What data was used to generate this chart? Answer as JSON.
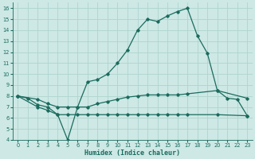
{
  "xlabel": "Humidex (Indice chaleur)",
  "bg_color": "#cde8e5",
  "line_color": "#1b6b5e",
  "grid_color": "#afd4cf",
  "xlim": [
    -0.5,
    23.5
  ],
  "ylim": [
    4,
    16.5
  ],
  "xticks": [
    0,
    1,
    2,
    3,
    4,
    5,
    6,
    7,
    8,
    9,
    10,
    11,
    12,
    13,
    14,
    15,
    16,
    17,
    18,
    19,
    20,
    21,
    22,
    23
  ],
  "yticks": [
    4,
    5,
    6,
    7,
    8,
    9,
    10,
    11,
    12,
    13,
    14,
    15,
    16
  ],
  "line1_x": [
    0,
    1,
    2,
    3,
    4,
    5,
    6,
    7,
    8,
    9,
    10,
    11,
    12,
    13,
    14,
    15,
    16,
    17,
    18,
    19,
    20,
    21,
    22,
    23
  ],
  "line1_y": [
    8.0,
    7.8,
    7.2,
    7.0,
    6.3,
    4.0,
    7.0,
    9.3,
    9.5,
    10.0,
    11.0,
    12.2,
    14.0,
    15.0,
    14.8,
    15.3,
    15.7,
    16.0,
    13.5,
    11.9,
    8.5,
    7.8,
    7.7,
    6.2
  ],
  "line2_x": [
    0,
    2,
    3,
    4,
    5,
    6,
    7,
    8,
    9,
    10,
    11,
    12,
    13,
    14,
    15,
    16,
    17,
    20,
    23
  ],
  "line2_y": [
    8.0,
    7.7,
    7.3,
    7.0,
    7.0,
    7.0,
    7.0,
    7.3,
    7.5,
    7.7,
    7.9,
    8.0,
    8.1,
    8.1,
    8.1,
    8.1,
    8.2,
    8.5,
    7.8
  ],
  "line3_x": [
    0,
    2,
    3,
    4,
    5,
    6,
    7,
    8,
    9,
    10,
    11,
    12,
    13,
    14,
    15,
    16,
    17,
    20,
    23
  ],
  "line3_y": [
    8.0,
    7.0,
    6.7,
    6.3,
    6.3,
    6.3,
    6.3,
    6.3,
    6.3,
    6.3,
    6.3,
    6.3,
    6.3,
    6.3,
    6.3,
    6.3,
    6.3,
    6.3,
    6.2
  ]
}
